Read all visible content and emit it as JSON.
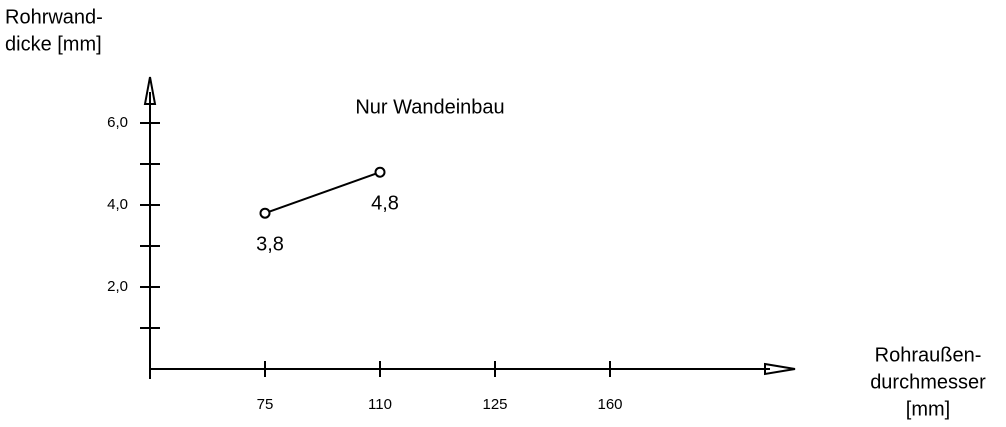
{
  "chart_data": {
    "type": "line",
    "title": "Nur Wandeinbau",
    "y_label": [
      "Rohrwand-",
      "dicke [mm]"
    ],
    "x_label": [
      "Rohraußen-",
      "durchmesser",
      "[mm]"
    ],
    "categories": [
      "75",
      "110",
      "125",
      "160"
    ],
    "series": [
      {
        "values": [
          3.8,
          4.8,
          null,
          null
        ],
        "value_labels": [
          "3,8",
          "4,8",
          null,
          null
        ],
        "color": "#000000"
      }
    ],
    "ylim": [
      0,
      7
    ],
    "yticks": [
      {
        "value": 2,
        "label": "2,0"
      },
      {
        "value": 4,
        "label": "4,0"
      },
      {
        "value": 6,
        "label": "6,0"
      }
    ],
    "yticks_minor": [
      1,
      3,
      5
    ]
  }
}
